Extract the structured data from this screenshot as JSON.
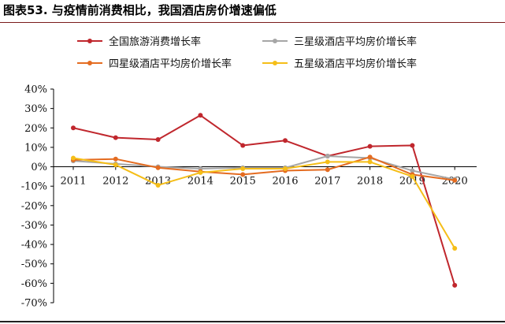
{
  "figure": {
    "title": "图表53.  与疫情前消费相比，我国酒店房价增速偏低"
  },
  "chart_data": {
    "type": "line",
    "title": "",
    "xlabel": "",
    "ylabel": "",
    "x": [
      "2011",
      "2012",
      "2013",
      "2014",
      "2015",
      "2016",
      "2017",
      "2018",
      "2019",
      "2020"
    ],
    "ylim": [
      -70,
      40
    ],
    "yticks": [
      40,
      30,
      20,
      10,
      0,
      -10,
      -20,
      -30,
      -40,
      -50,
      -60,
      -70
    ],
    "ytick_labels": [
      "40%",
      "30%",
      "20%",
      "10%",
      "0%",
      "-10%",
      "-20%",
      "-30%",
      "-40%",
      "-50%",
      "-60%",
      "-70%"
    ],
    "grid": false,
    "legend_position": "top",
    "series": [
      {
        "name": "全国旅游消费增长率",
        "color": "#C0272D",
        "values": [
          20,
          15,
          14,
          26.5,
          11,
          13.5,
          5.5,
          10.5,
          11,
          -61
        ]
      },
      {
        "name": "三星级酒店平均房价增长率",
        "color": "#A6A6A6",
        "values": [
          3,
          1.5,
          0,
          -1,
          -0.5,
          -0.5,
          5.5,
          4.5,
          -2,
          -6.5
        ]
      },
      {
        "name": "四星级酒店平均房价增长率",
        "color": "#E46C21",
        "values": [
          3.5,
          4,
          -0.5,
          -2.5,
          -4,
          -2,
          -1.5,
          5,
          -4,
          -7
        ]
      },
      {
        "name": "五星级酒店平均房价增长率",
        "color": "#F5BE18",
        "values": [
          4.5,
          1,
          -9.5,
          -3,
          -1,
          -1,
          2.5,
          2.5,
          -5,
          -42
        ]
      }
    ]
  }
}
